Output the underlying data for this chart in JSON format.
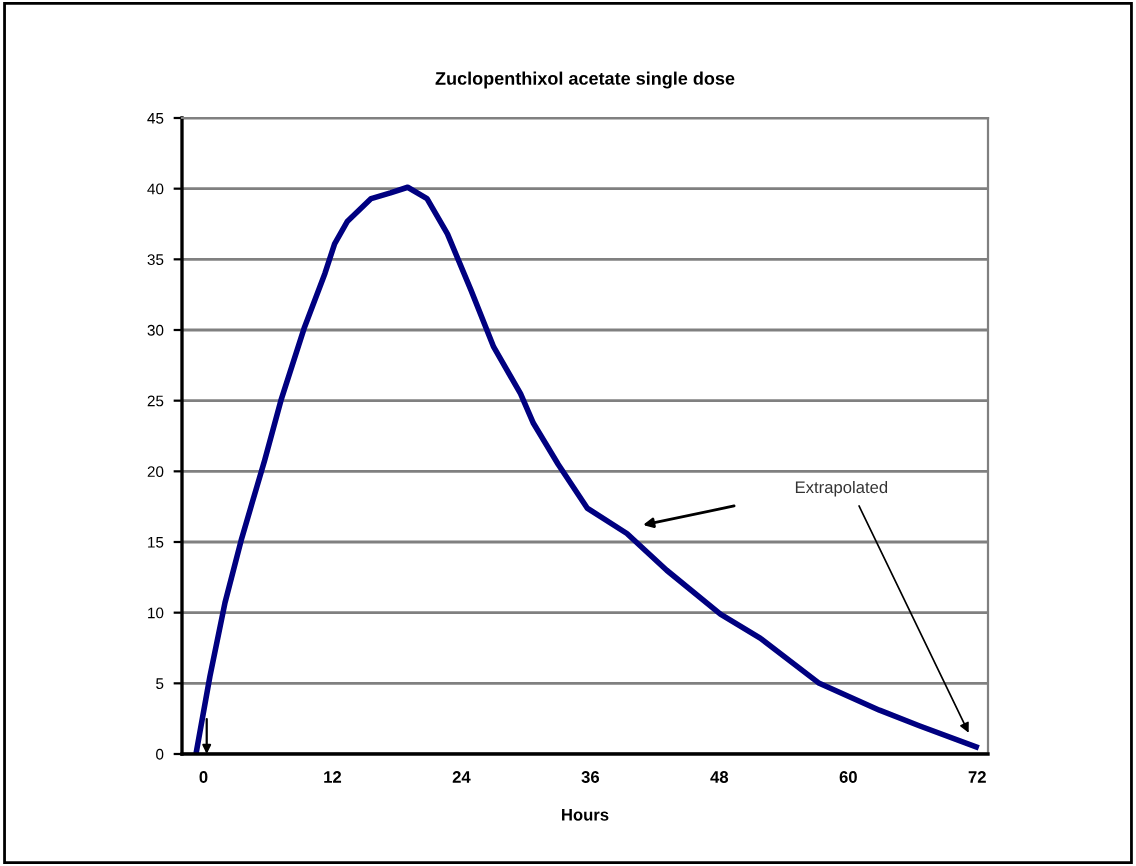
{
  "chart_data": {
    "type": "line",
    "title": "Zuclopenthixol acetate single dose",
    "xlabel": "Hours",
    "x": [
      -0.7,
      0.6,
      2.0,
      3.5,
      4.5,
      5.7,
      7.2,
      9.4,
      11.3,
      12.2,
      13.4,
      15.6,
      17.4,
      19.0,
      20.8,
      22.7,
      24.9,
      27.0,
      29.5,
      30.7,
      33.0,
      35.7,
      39.4,
      43.1,
      48.1,
      51.8,
      57.3,
      62.9,
      66.6,
      71.9
    ],
    "series": [
      {
        "color": "#000080",
        "values": [
          0,
          5.5,
          10.7,
          15.1,
          17.7,
          20.8,
          25,
          30.2,
          34,
          36.1,
          37.7,
          39.3,
          39.7,
          40.1,
          39.3,
          36.8,
          32.8,
          28.8,
          25.5,
          23.4,
          20.5,
          17.4,
          15.6,
          13,
          9.9,
          8.2,
          5,
          3.1,
          2,
          0.5
        ]
      }
    ],
    "xlim": [
      -2,
      73
    ],
    "xticks": [
      0,
      12,
      24,
      36,
      48,
      60,
      72
    ],
    "ylim": [
      0,
      45
    ],
    "yticks": [
      0,
      5,
      10,
      15,
      20,
      25,
      30,
      35,
      40,
      45
    ],
    "grid": "y",
    "marker": "none",
    "line_style": "solid",
    "annotations": [
      "Extrapolated"
    ]
  }
}
